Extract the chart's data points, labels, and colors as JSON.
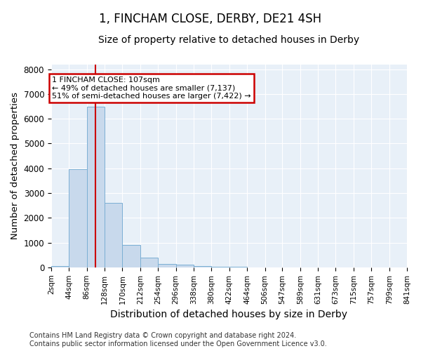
{
  "title": "1, FINCHAM CLOSE, DERBY, DE21 4SH",
  "subtitle": "Size of property relative to detached houses in Derby",
  "xlabel": "Distribution of detached houses by size in Derby",
  "ylabel": "Number of detached properties",
  "footer_line1": "Contains HM Land Registry data © Crown copyright and database right 2024.",
  "footer_line2": "Contains public sector information licensed under the Open Government Licence v3.0.",
  "bin_edges": [
    2,
    44,
    86,
    128,
    170,
    212,
    254,
    296,
    338,
    380,
    422,
    464,
    506,
    547,
    589,
    631,
    673,
    715,
    757,
    799,
    841
  ],
  "bar_heights": [
    40,
    3950,
    6500,
    2600,
    900,
    380,
    150,
    100,
    50,
    30,
    15,
    5,
    3,
    2,
    1,
    1,
    1,
    1,
    1,
    1
  ],
  "bar_color": "#c8d9ec",
  "bar_edge_color": "#7bafd4",
  "property_size": 107,
  "vline_color": "#cc0000",
  "annotation_line1": "1 FINCHAM CLOSE: 107sqm",
  "annotation_line2": "← 49% of detached houses are smaller (7,137)",
  "annotation_line3": "51% of semi-detached houses are larger (7,422) →",
  "annotation_box_color": "#cc0000",
  "ylim": [
    0,
    8200
  ],
  "yticks": [
    0,
    1000,
    2000,
    3000,
    4000,
    5000,
    6000,
    7000,
    8000
  ],
  "background_color": "#e8f0f8",
  "grid_color": "#ffffff",
  "title_fontsize": 12,
  "subtitle_fontsize": 10,
  "axis_label_fontsize": 9.5,
  "tick_fontsize": 7.5,
  "footer_fontsize": 7
}
